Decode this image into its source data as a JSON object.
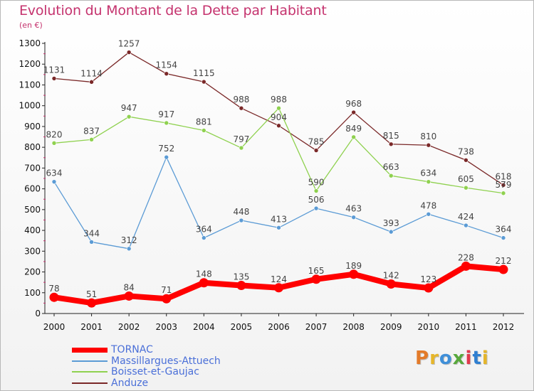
{
  "header": {
    "title": "Evolution du Montant de la Dette par Habitant",
    "subtitle": "(en €)"
  },
  "brand": {
    "text": "Proxiti",
    "letter_colors": [
      "#e37b2a",
      "#e6b62a",
      "#3f8fd8",
      "#58a83c",
      "#e23a4d",
      "#2f7fd1",
      "#e4b52b"
    ]
  },
  "chart_data": {
    "type": "line",
    "title": "Evolution du Montant de la Dette par Habitant",
    "subtitle": "(en €)",
    "xlabel": "",
    "ylabel": "",
    "x": [
      "2000",
      "2001",
      "2002",
      "2003",
      "2004",
      "2005",
      "2006",
      "2007",
      "2008",
      "2009",
      "2010",
      "2011",
      "2012"
    ],
    "ylim": [
      0,
      1300
    ],
    "yticks": [
      0,
      100,
      200,
      300,
      400,
      500,
      600,
      700,
      800,
      900,
      1000,
      1100,
      1200,
      1300
    ],
    "grid": false,
    "legend_position": "bottom-left",
    "series": [
      {
        "name": "TORNAC",
        "color": "#ff0000",
        "values": [
          78,
          51,
          84,
          71,
          148,
          135,
          124,
          165,
          189,
          142,
          123,
          228,
          212
        ],
        "emphasis": true
      },
      {
        "name": "Massillargues-Attuech",
        "color": "#5b9bd5",
        "values": [
          634,
          344,
          312,
          752,
          364,
          448,
          413,
          506,
          463,
          393,
          478,
          424,
          364
        ]
      },
      {
        "name": "Boisset-et-Gaujac",
        "color": "#8fd14f",
        "values": [
          820,
          837,
          947,
          917,
          881,
          797,
          988,
          590,
          849,
          663,
          634,
          605,
          579
        ]
      },
      {
        "name": "Anduze",
        "color": "#7a2828",
        "values": [
          1131,
          1114,
          1257,
          1154,
          1115,
          988,
          904,
          785,
          968,
          815,
          810,
          738,
          618
        ]
      }
    ]
  }
}
